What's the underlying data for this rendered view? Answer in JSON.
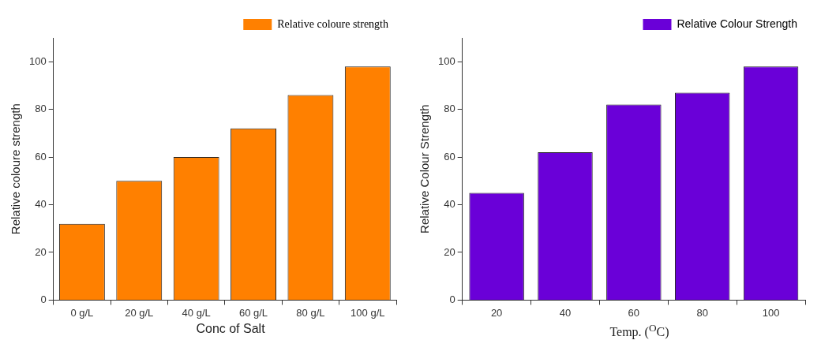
{
  "chart_data": [
    {
      "type": "bar",
      "categories": [
        "0 g/L",
        "20 g/L",
        "40 g/L",
        "60 g/L",
        "80 g/L",
        "100 g/L"
      ],
      "xlabel": "Conc of Salt",
      "ylabel": "Relative coloure strength",
      "series": [
        {
          "name": "Relative coloure strength",
          "color": "#ff8000",
          "values": [
            32,
            50,
            60,
            72,
            86,
            98
          ]
        }
      ],
      "ylim": [
        0,
        110
      ],
      "yticks": [
        0,
        20,
        40,
        60,
        80,
        100
      ],
      "grid": false,
      "legend": "top right"
    },
    {
      "type": "bar",
      "categories": [
        "20",
        "40",
        "60",
        "80",
        "100"
      ],
      "xlabel": "Temp. ($^{O}$C)",
      "ylabel": "Relative Colour Strength",
      "series": [
        {
          "name": "Relative Colour Strength",
          "color": "#6a00d8",
          "values": [
            45,
            62,
            82,
            87,
            98
          ]
        }
      ],
      "ylim": [
        0,
        110
      ],
      "yticks": [
        0,
        20,
        40,
        60,
        80,
        100
      ],
      "grid": false,
      "legend": "top right"
    }
  ]
}
